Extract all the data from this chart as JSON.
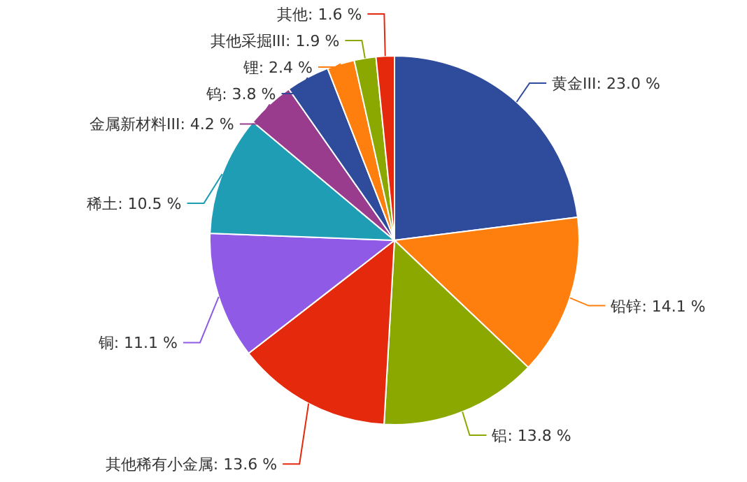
{
  "chart_data": {
    "type": "pie",
    "categories": [
      "黄金III",
      "铅锌",
      "铝",
      "其他稀有小金属",
      "铜",
      "稀土",
      "金属新材料III",
      "钨",
      "锂",
      "其他采掘III",
      "其他"
    ],
    "values": [
      23.0,
      14.1,
      13.8,
      13.6,
      11.1,
      10.5,
      4.2,
      3.8,
      2.4,
      1.9,
      1.6
    ],
    "colors": [
      "#2f4b9b",
      "#ff7f0e",
      "#8aa800",
      "#e5290c",
      "#8e5ae6",
      "#1e9db5",
      "#9a3c8e",
      "#2f4b9b",
      "#ff7f0e",
      "#8aa800",
      "#e5290c"
    ],
    "value_labels": [
      "23.0 %",
      "14.1 %",
      "13.8 %",
      "13.6 %",
      "11.1 %",
      "10.5 %",
      "4.2 %",
      "3.8 %",
      "2.4 %",
      "1.9 %",
      "1.6 %"
    ]
  }
}
